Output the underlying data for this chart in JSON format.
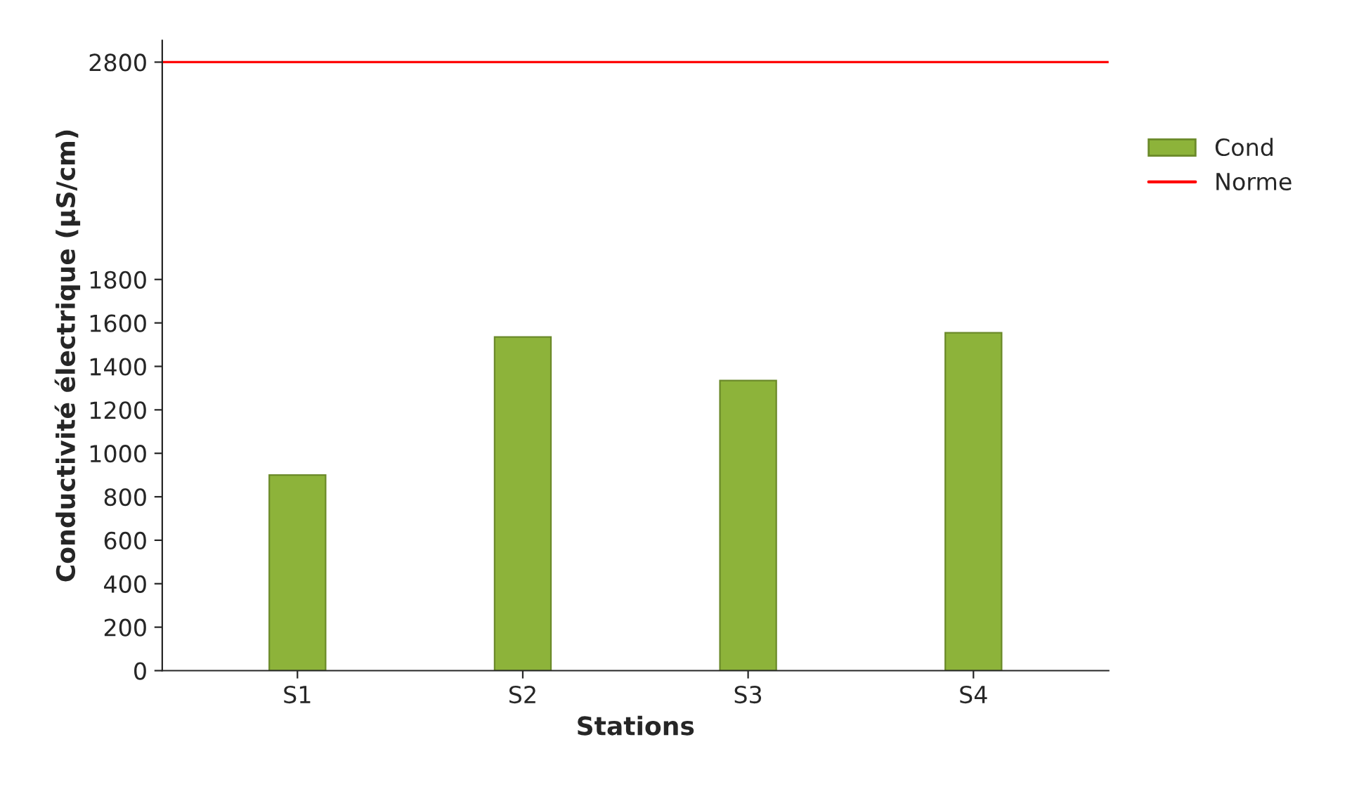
{
  "chart_data": {
    "type": "bar",
    "xlabel": "Stations",
    "ylabel": "Conductivité électrique (µS/cm)",
    "categories": [
      "S1",
      "S2",
      "S3",
      "S4"
    ],
    "series": [
      {
        "name": "Cond",
        "color": "#8db33a",
        "values": [
          900,
          1535,
          1335,
          1555
        ]
      }
    ],
    "ylim": [
      0,
      2900
    ],
    "yticks": [
      0,
      200,
      400,
      600,
      800,
      1000,
      1200,
      1400,
      1600,
      1800,
      2800
    ],
    "ref_lines": [
      {
        "axis": "y",
        "value": 2800,
        "label": "Norme",
        "color": "#ff0000",
        "line_style": "solid"
      }
    ],
    "legend": "right",
    "grid": false
  }
}
